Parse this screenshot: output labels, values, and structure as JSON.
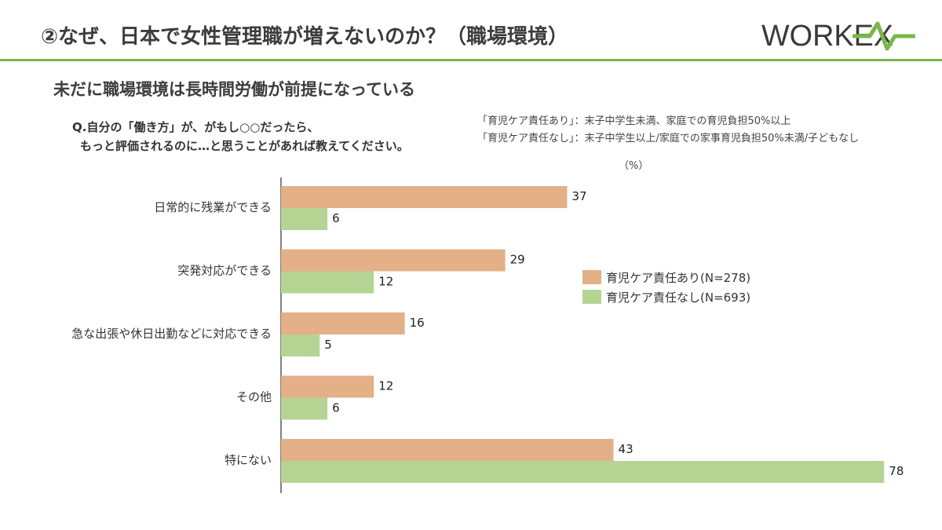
{
  "header": {
    "title": "②なぜ、日本で女性管理職が増えないのか？（職場環境）",
    "logo_text": "WORKEX"
  },
  "subtitle": "未だに職場環境は長時間労働が前提になっている",
  "question": {
    "line1": "Q.自分の「働き方」が、がもし○○だったら、",
    "line2": "もっと評価されるのに…と思うことがあれば教えてください。"
  },
  "notes": [
    "「育児ケア責任あり」：末子中学生未満、家庭での育児負担50%以上",
    "「育児ケア責任なし」：末子中学生以上/家庭での家事育児負担50%未満/子どもなし"
  ],
  "unit": "（%）",
  "colors": {
    "accent_green": "#7ab648",
    "series_orange": "#e3b088",
    "series_green": "#b5d494"
  },
  "chart_data": {
    "type": "bar",
    "orientation": "horizontal",
    "categories": [
      "日常的に残業ができる",
      "突発対応ができる",
      "急な出張や休日出勤などに対応できる",
      "その他",
      "特にない"
    ],
    "series": [
      {
        "name": "育児ケア責任あり(N=278)",
        "values": [
          37,
          29,
          16,
          12,
          43
        ],
        "color": "#e3b088"
      },
      {
        "name": "育児ケア責任なし(N=693)",
        "values": [
          6,
          12,
          5,
          6,
          78
        ],
        "color": "#b5d494"
      }
    ],
    "xlim": [
      0,
      80
    ],
    "grid": false,
    "legend_position": "center-right"
  }
}
